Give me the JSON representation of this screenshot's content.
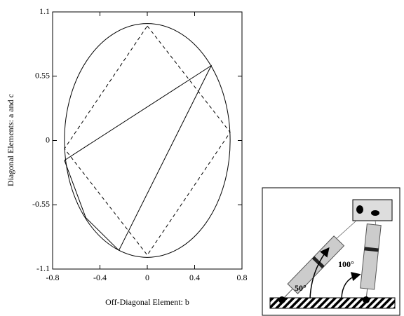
{
  "chart_data": {
    "type": "line",
    "xlabel": "Off-Diagonal Element: b",
    "ylabel": "Diagonal Elements: a and c",
    "xlim": [
      -0.8,
      0.8
    ],
    "ylim": [
      -1.1,
      1.1
    ],
    "xticks": [
      -0.8,
      -0.4,
      0,
      0.4,
      0.8
    ],
    "yticks": [
      -1.1,
      -0.55,
      0,
      0.55,
      1.1
    ],
    "ellipse": {
      "cx": 0,
      "cy": 0,
      "rx": 0.7,
      "ry": 1.0,
      "color": "#000"
    },
    "series": [
      {
        "color": "#000",
        "dashed": true,
        "x": [
          0,
          0.7,
          0,
          -0.7,
          0
        ],
        "y": [
          0.98,
          0.07,
          -0.98,
          -0.07,
          0.98
        ]
      },
      {
        "color": "#000",
        "dashed": false,
        "x": [
          -0.7,
          0.54,
          -0.24,
          -0.52,
          -0.7
        ],
        "y": [
          -0.17,
          0.64,
          -0.94,
          -0.66,
          -0.17
        ]
      }
    ]
  },
  "inset": {
    "labels": [
      "50°",
      "100°"
    ]
  }
}
